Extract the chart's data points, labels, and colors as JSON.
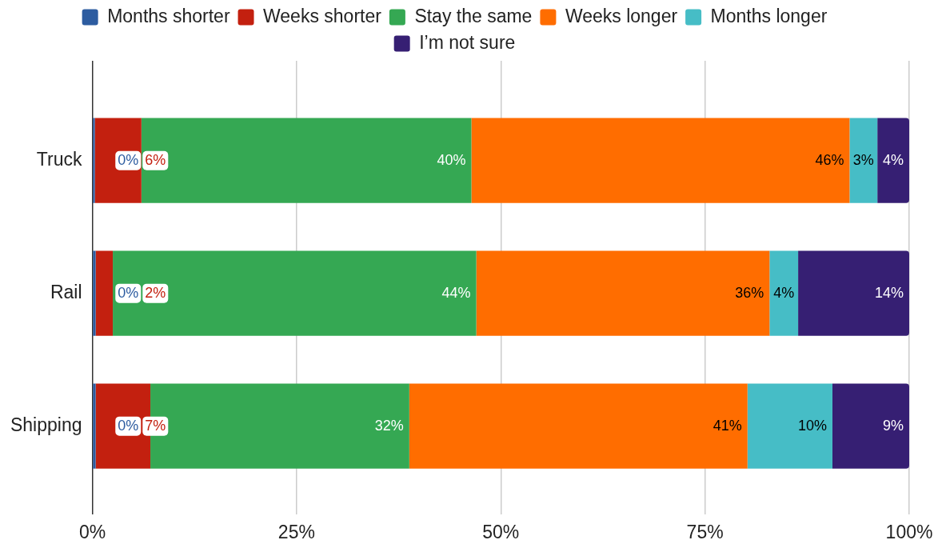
{
  "chart_data": {
    "type": "bar",
    "orientation": "horizontal",
    "stacked": true,
    "categories": [
      "Truck",
      "Rail",
      "Shipping"
    ],
    "series": [
      {
        "name": "Months shorter",
        "color": "#2d5ca0",
        "values": [
          0.3,
          0.4,
          0.4
        ],
        "value_labels": [
          "0%",
          "0%",
          "0%"
        ]
      },
      {
        "name": "Weeks shorter",
        "color": "#c3200f",
        "values": [
          5.7,
          2.1,
          6.7
        ],
        "value_labels": [
          "6%",
          "2%",
          "7%"
        ]
      },
      {
        "name": "Stay the same",
        "color": "#35a853",
        "values": [
          40.4,
          44.5,
          31.7
        ],
        "value_labels": [
          "40%",
          "44%",
          "32%"
        ]
      },
      {
        "name": "Weeks longer",
        "color": "#ff6d00",
        "values": [
          46.3,
          35.9,
          41.4
        ],
        "value_labels": [
          "46%",
          "36%",
          "41%"
        ]
      },
      {
        "name": "Months longer",
        "color": "#46bdc6",
        "values": [
          3.4,
          3.5,
          10.4
        ],
        "value_labels": [
          "3%",
          "4%",
          "10%"
        ]
      },
      {
        "name": "I’m not sure",
        "color": "#361f73",
        "values": [
          3.9,
          13.6,
          9.4
        ],
        "value_labels": [
          "4%",
          "14%",
          "9%"
        ]
      }
    ],
    "xlim": [
      0,
      100
    ],
    "xticks": [
      {
        "value": 0,
        "label": "0%"
      },
      {
        "value": 25,
        "label": "25%"
      },
      {
        "value": 50,
        "label": "50%"
      },
      {
        "value": 75,
        "label": "75%"
      },
      {
        "value": 100,
        "label": "100%"
      }
    ],
    "grid": "x",
    "legend": "top"
  }
}
